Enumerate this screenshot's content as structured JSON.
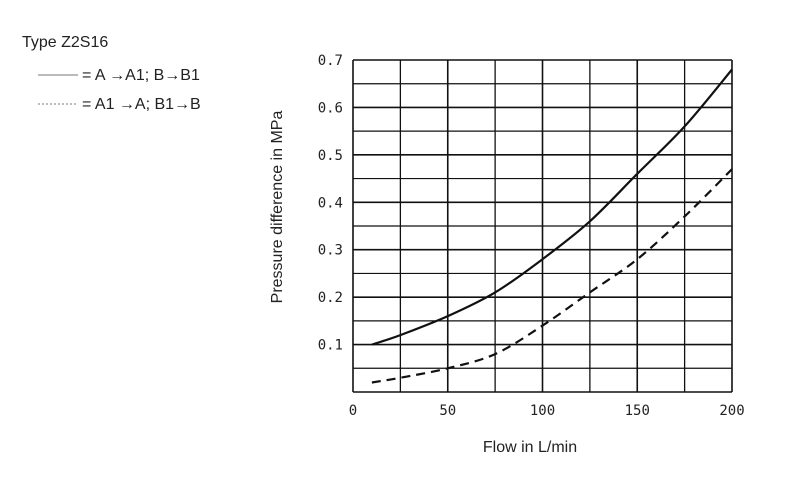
{
  "chart_data": {
    "type": "line",
    "title": "Type Z2S16",
    "xlabel": "Flow in L/min",
    "ylabel": "Pressure difference in MPa",
    "xlim": [
      0,
      200
    ],
    "ylim": [
      0,
      0.7
    ],
    "x_ticks": [
      0,
      50,
      100,
      150,
      200
    ],
    "y_ticks": [
      0.1,
      0.2,
      0.3,
      0.4,
      0.5,
      0.6,
      0.7
    ],
    "grid": true,
    "legend_position": "top-left",
    "series": [
      {
        "name": "= A →A1; B→B1",
        "style": "solid",
        "color": "#111111",
        "x": [
          10,
          25,
          50,
          75,
          100,
          125,
          150,
          175,
          200
        ],
        "y": [
          0.1,
          0.12,
          0.16,
          0.21,
          0.28,
          0.36,
          0.46,
          0.56,
          0.68
        ]
      },
      {
        "name": "= A1 →A; B1→B",
        "style": "dashed",
        "color": "#111111",
        "x": [
          10,
          25,
          50,
          75,
          100,
          125,
          150,
          175,
          200
        ],
        "y": [
          0.02,
          0.03,
          0.05,
          0.08,
          0.14,
          0.21,
          0.28,
          0.37,
          0.47
        ]
      }
    ]
  }
}
